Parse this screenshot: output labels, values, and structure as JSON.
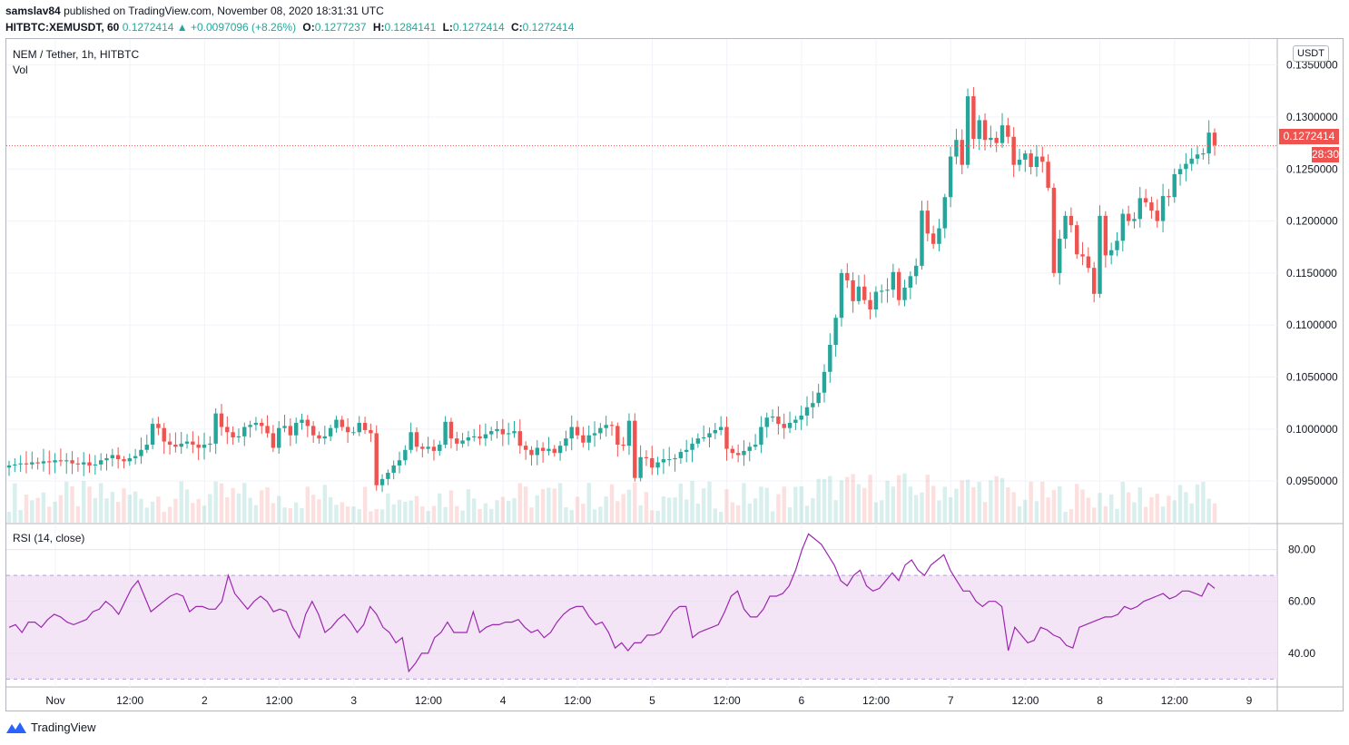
{
  "header": {
    "publisher": "samslav84",
    "published_text": "published on TradingView.com, November 08, 2020 18:31:31 UTC",
    "symbol": "HITBTC:XEMUSDT, 60",
    "last": "0.1272414",
    "change": "▲ +0.0097096 (+8.26%)",
    "o_label": "O:",
    "o": "0.1277237",
    "h_label": "H:",
    "h": "0.1284141",
    "l_label": "L:",
    "l": "0.1272414",
    "c_label": "C:",
    "c": "0.1272414"
  },
  "legend": {
    "title": "NEM / Tether, 1h, HITBTC",
    "vol": "Vol",
    "rsi": "RSI (14, close)"
  },
  "price_axis": {
    "currency": "USDT",
    "last_price": "0.1272414",
    "countdown": "28:30",
    "ticks": [
      "0.1350000",
      "0.1300000",
      "0.1250000",
      "0.1200000",
      "0.1150000",
      "0.1100000",
      "0.1050000",
      "0.1000000",
      "0.0950000"
    ]
  },
  "rsi_axis": {
    "ticks": [
      "80.00",
      "60.00",
      "40.00"
    ]
  },
  "time_axis": {
    "labels": [
      "Nov",
      "12:00",
      "2",
      "12:00",
      "3",
      "12:00",
      "4",
      "12:00",
      "5",
      "12:00",
      "6",
      "12:00",
      "7",
      "12:00",
      "8",
      "12:00",
      "9"
    ]
  },
  "footer": {
    "brand": "TradingView"
  },
  "colors": {
    "up": "#26a69a",
    "down": "#ef5350",
    "rsi_line": "#9c27b0",
    "rsi_band": "#f3e5f5"
  },
  "chart_data": [
    {
      "type": "candlestick",
      "title": "NEM / Tether, 1h, HITBTC",
      "ylim": [
        0.091,
        0.1375
      ],
      "close_series": [
        0.0965,
        0.0966,
        0.0967,
        0.0966,
        0.0968,
        0.0967,
        0.0969,
        0.0968,
        0.097,
        0.0969,
        0.097,
        0.0967,
        0.0966,
        0.0968,
        0.0965,
        0.0966,
        0.097,
        0.0972,
        0.0975,
        0.0971,
        0.0969,
        0.0972,
        0.0974,
        0.098,
        0.0985,
        0.1005,
        0.1001,
        0.0988,
        0.0985,
        0.0983,
        0.0986,
        0.0988,
        0.0985,
        0.0982,
        0.0985,
        0.0986,
        0.1015,
        0.1002,
        0.0997,
        0.0992,
        0.0993,
        0.1002,
        0.1004,
        0.1006,
        0.1003,
        0.0996,
        0.0982,
        0.1001,
        0.1003,
        0.0994,
        0.1006,
        0.1009,
        0.1003,
        0.0994,
        0.0991,
        0.0993,
        0.1001,
        0.1009,
        0.1002,
        0.0997,
        0.0997,
        0.1006,
        0.0999,
        0.0996,
        0.0946,
        0.0952,
        0.0958,
        0.0965,
        0.097,
        0.098,
        0.0997,
        0.0983,
        0.0981,
        0.0983,
        0.0979,
        0.0985,
        0.1007,
        0.0991,
        0.0986,
        0.0989,
        0.0992,
        0.0993,
        0.0991,
        0.0995,
        0.0998,
        0.1,
        0.0995,
        0.0996,
        0.0998,
        0.0984,
        0.098,
        0.0975,
        0.0982,
        0.0979,
        0.0981,
        0.0977,
        0.0984,
        0.0991,
        0.1002,
        0.0994,
        0.0987,
        0.0994,
        0.0996,
        0.1001,
        0.1004,
        0.1003,
        0.0985,
        0.0984,
        0.1008,
        0.0953,
        0.0973,
        0.0972,
        0.0963,
        0.0968,
        0.0971,
        0.0971,
        0.0972,
        0.0978,
        0.098,
        0.0986,
        0.0991,
        0.0992,
        0.0996,
        0.0999,
        0.1002,
        0.0981,
        0.0977,
        0.0975,
        0.0979,
        0.0983,
        0.0985,
        0.1002,
        0.1011,
        0.1012,
        0.1005,
        0.1001,
        0.1006,
        0.1009,
        0.1013,
        0.1021,
        0.1025,
        0.1035,
        0.1055,
        0.1081,
        0.1107,
        0.115,
        0.1143,
        0.1123,
        0.1137,
        0.1124,
        0.1115,
        0.1132,
        0.1133,
        0.1134,
        0.1151,
        0.1124,
        0.1136,
        0.1147,
        0.1157,
        0.121,
        0.1188,
        0.1178,
        0.1193,
        0.1223,
        0.1262,
        0.1278,
        0.1254,
        0.132,
        0.1279,
        0.1297,
        0.1278,
        0.128,
        0.1275,
        0.1292,
        0.1281,
        0.1254,
        0.1259,
        0.1265,
        0.1252,
        0.1262,
        0.1257,
        0.1232,
        0.115,
        0.1183,
        0.1205,
        0.1196,
        0.1168,
        0.1166,
        0.1155,
        0.113,
        0.1205,
        0.1167,
        0.1172,
        0.1181,
        0.1207,
        0.12,
        0.1202,
        0.1222,
        0.1218,
        0.121,
        0.12,
        0.1224,
        0.1223,
        0.1245,
        0.125,
        0.1255,
        0.126,
        0.1264,
        0.1265,
        0.1285,
        0.1273
      ],
      "last": 0.1272414
    },
    {
      "type": "line",
      "title": "RSI (14, close)",
      "ylim": [
        27,
        90
      ],
      "levels": [
        70,
        30
      ],
      "values": [
        50,
        51,
        48,
        52,
        52,
        50,
        53,
        55,
        54,
        52,
        51,
        52,
        53,
        56,
        57,
        60,
        58,
        55,
        60,
        65,
        68,
        62,
        56,
        58,
        60,
        62,
        63,
        62,
        56,
        58,
        58,
        57,
        57,
        60,
        70,
        63,
        60,
        57,
        60,
        62,
        60,
        56,
        57,
        56,
        50,
        46,
        55,
        60,
        55,
        48,
        50,
        53,
        55,
        52,
        48,
        51,
        58,
        55,
        50,
        48,
        44,
        46,
        33,
        36,
        40,
        40,
        46,
        48,
        52,
        48,
        48,
        48,
        56,
        48,
        50,
        51,
        51,
        52,
        52,
        53,
        50,
        48,
        49,
        46,
        48,
        52,
        55,
        57,
        58,
        58,
        54,
        51,
        52,
        48,
        42,
        44,
        41,
        44,
        44,
        47,
        47,
        48,
        52,
        56,
        58,
        58,
        46,
        48,
        49,
        50,
        51,
        56,
        62,
        64,
        57,
        54,
        54,
        57,
        62,
        62,
        63,
        66,
        72,
        80,
        86,
        84,
        82,
        78,
        74,
        68,
        66,
        70,
        72,
        66,
        64,
        65,
        68,
        71,
        68,
        74,
        76,
        72,
        70,
        74,
        76,
        78,
        72,
        68,
        64,
        64,
        60,
        58,
        60,
        60,
        58,
        41,
        50,
        47,
        44,
        45,
        50,
        49,
        47,
        46,
        43,
        42,
        50,
        51,
        52,
        53,
        54,
        54,
        55,
        58,
        57,
        58,
        60,
        61,
        62,
        63,
        61,
        62,
        64,
        64,
        63,
        62,
        67,
        65
      ]
    }
  ]
}
